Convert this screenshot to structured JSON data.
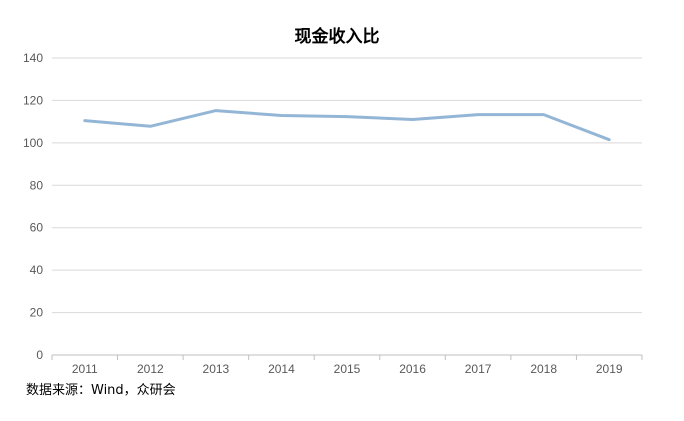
{
  "chart_data": {
    "type": "line",
    "title": "现金收入比",
    "xlabel": "",
    "ylabel": "",
    "categories": [
      "2011",
      "2012",
      "2013",
      "2014",
      "2015",
      "2016",
      "2017",
      "2018",
      "2019"
    ],
    "series": [
      {
        "values": [
          110.5,
          107.8,
          115.2,
          112.9,
          112.4,
          111.0,
          113.3,
          113.3,
          101.5
        ],
        "color": "#94b6d6"
      }
    ],
    "ylim": [
      0,
      140
    ],
    "yticks": [
      "0",
      "20",
      "40",
      "60",
      "80",
      "100",
      "120",
      "140"
    ],
    "grid": true,
    "legend": "none"
  },
  "source": "数据来源：Wind，众研会"
}
